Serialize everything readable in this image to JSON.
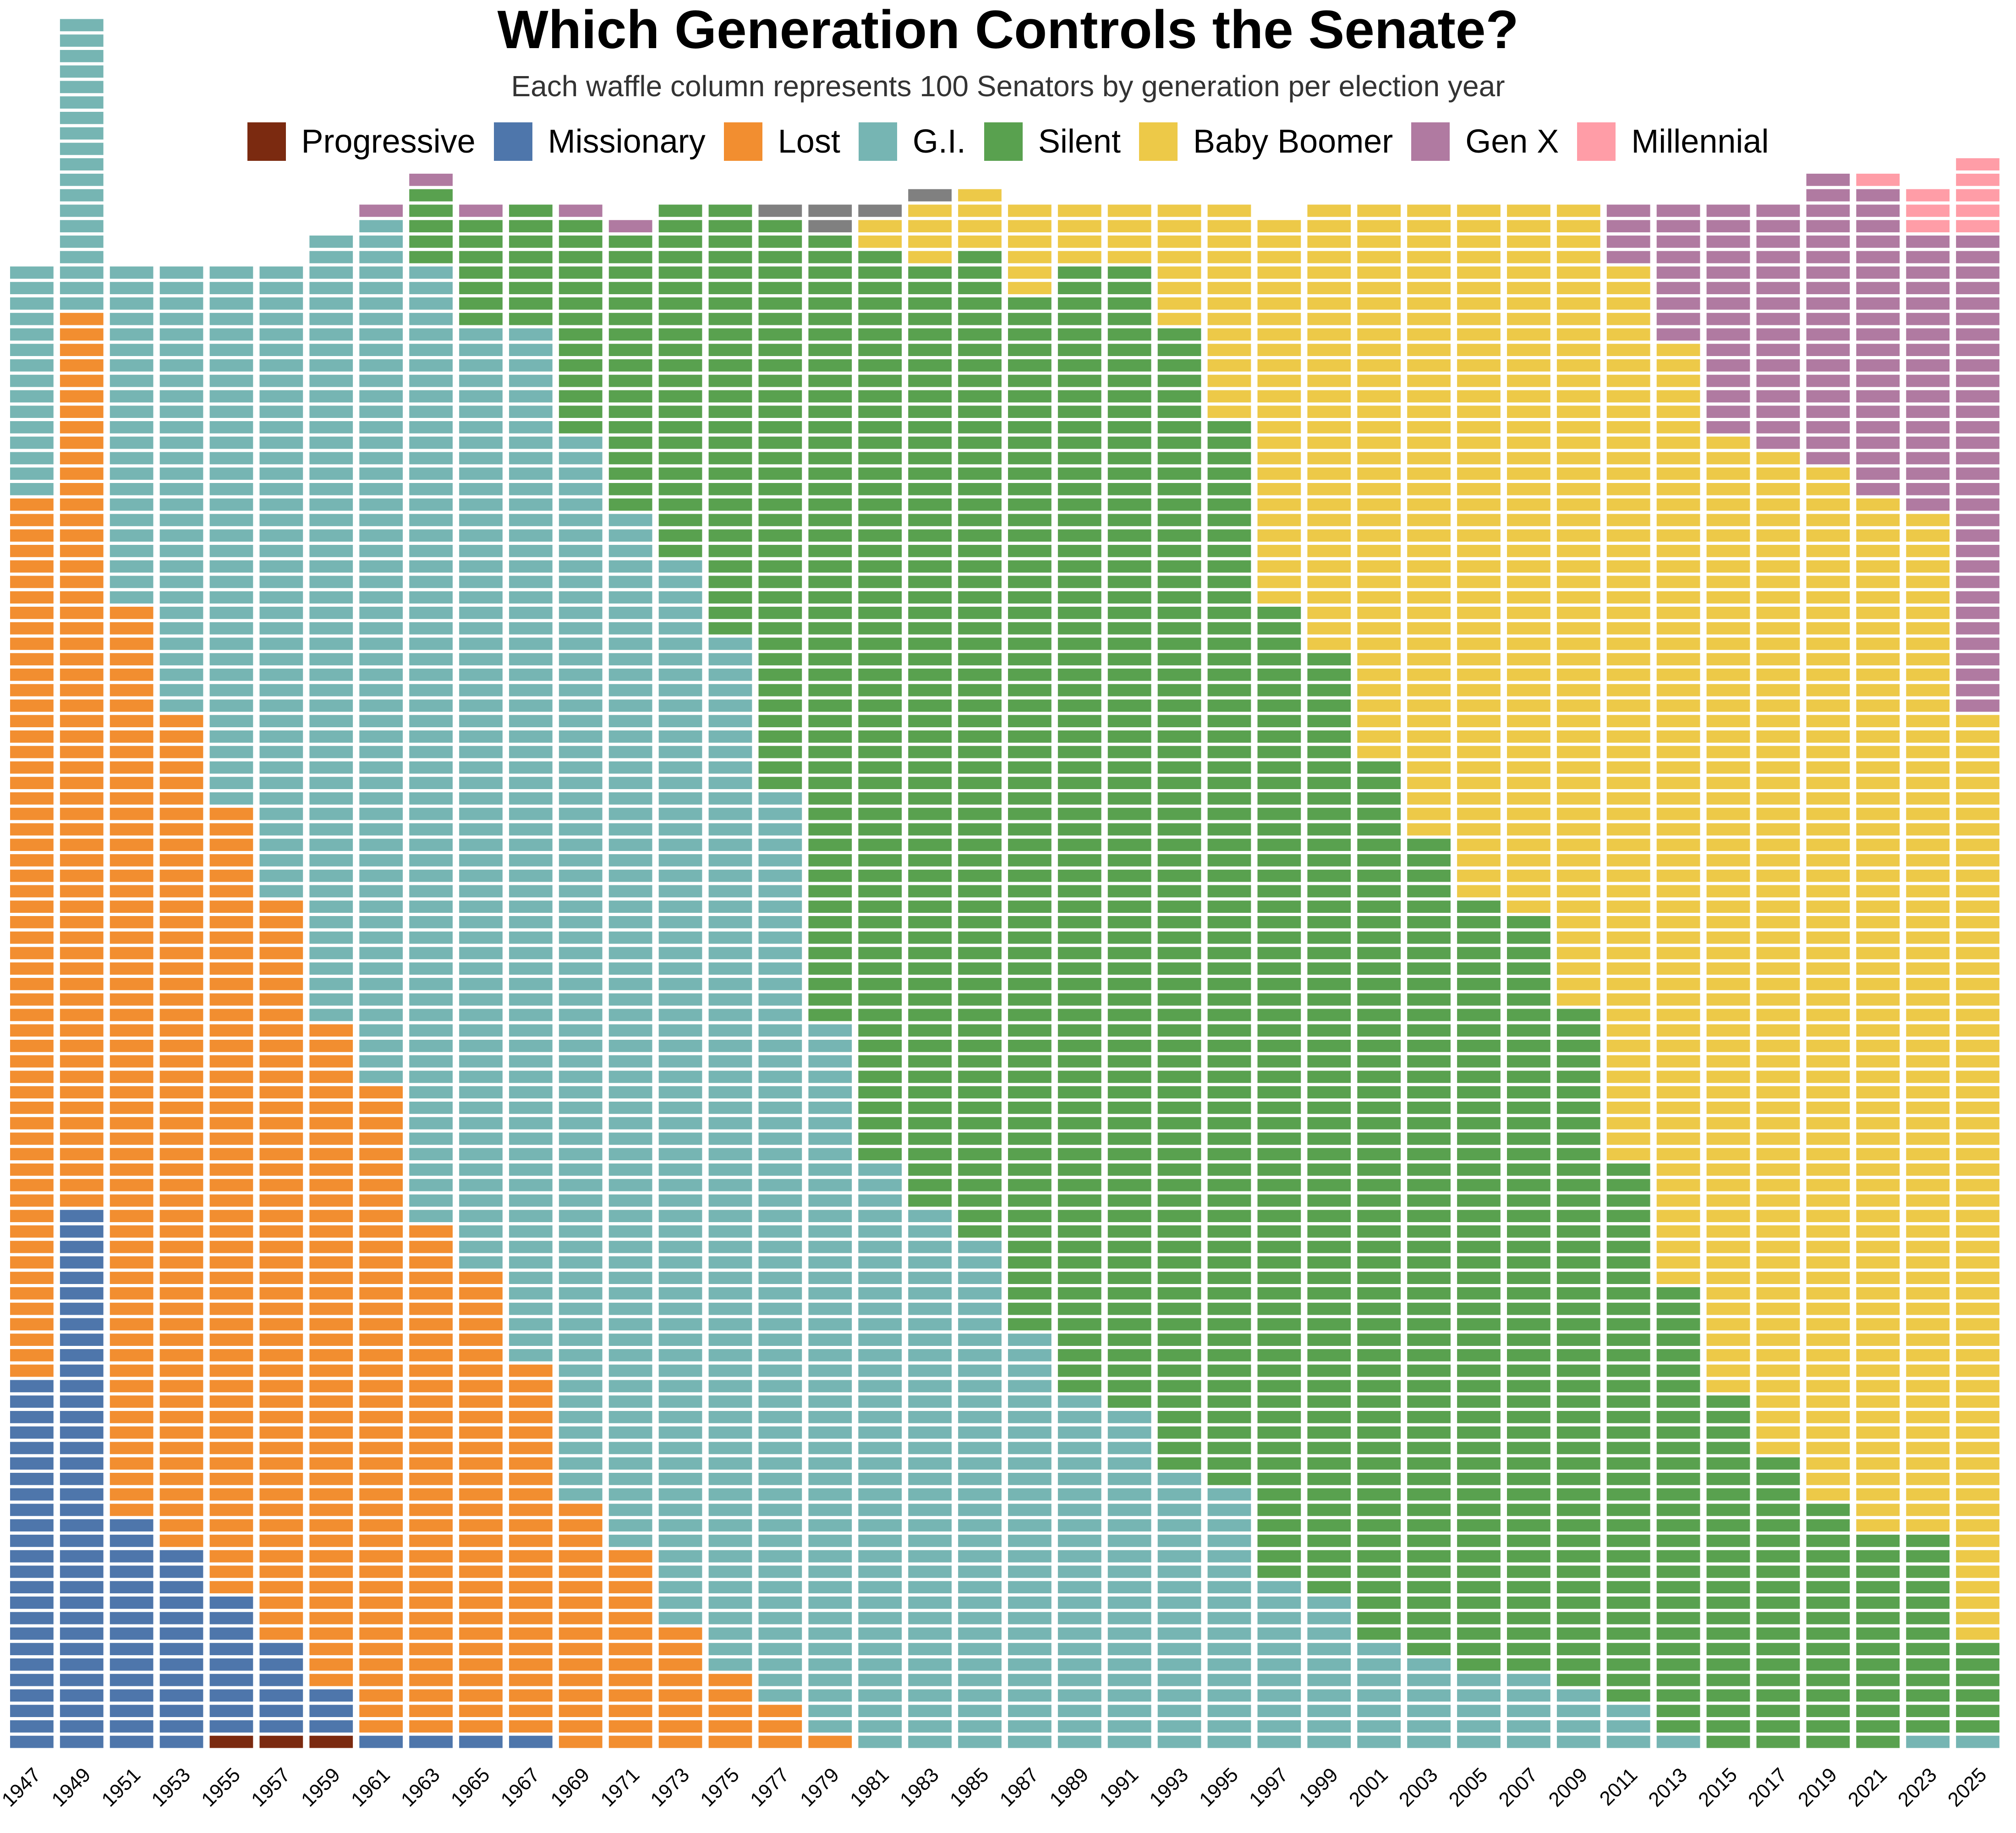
{
  "chart_data": {
    "type": "waffle",
    "title": "Which Generation Controls the Senate?",
    "subtitle": "Each waffle column represents 100 Senators by generation per election year",
    "legend_position": "top",
    "generations": [
      {
        "name": "Progressive",
        "color": "#7B2A10"
      },
      {
        "name": "Missionary",
        "color": "#4E76AB"
      },
      {
        "name": "Lost",
        "color": "#F28E30"
      },
      {
        "name": "G.I.",
        "color": "#76B5B3"
      },
      {
        "name": "Silent",
        "color": "#59A14F"
      },
      {
        "name": "Baby Boomer",
        "color": "#EDC948"
      },
      {
        "name": "Gen X",
        "color": "#B07AA1"
      },
      {
        "name": "Millennial",
        "color": "#FF9DA7"
      }
    ],
    "unknown_color": "#808080",
    "years": [
      "1947",
      "1949",
      "1951",
      "1953",
      "1955",
      "1957",
      "1959",
      "1961",
      "1963",
      "1965",
      "1967",
      "1969",
      "1971",
      "1973",
      "1975",
      "1977",
      "1979",
      "1981",
      "1983",
      "1985",
      "1987",
      "1989",
      "1991",
      "1993",
      "1995",
      "1997",
      "1999",
      "2001",
      "2003",
      "2005",
      "2007",
      "2009",
      "2011",
      "2013",
      "2015",
      "2017",
      "2019",
      "2021",
      "2023",
      "2025"
    ],
    "series": [
      {
        "name": "Progressive",
        "values": [
          0,
          0,
          0,
          0,
          1,
          1,
          1,
          0,
          0,
          0,
          0,
          0,
          0,
          0,
          0,
          0,
          0,
          0,
          0,
          0,
          0,
          0,
          0,
          0,
          0,
          0,
          0,
          0,
          0,
          0,
          0,
          0,
          0,
          0,
          0,
          0,
          0,
          0,
          0,
          0
        ]
      },
      {
        "name": "Missionary",
        "values": [
          24,
          35,
          15,
          13,
          9,
          6,
          3,
          1,
          1,
          1,
          1,
          0,
          0,
          0,
          0,
          0,
          0,
          0,
          0,
          0,
          0,
          0,
          0,
          0,
          0,
          0,
          0,
          0,
          0,
          0,
          0,
          0,
          0,
          0,
          0,
          0,
          0,
          0,
          0,
          0
        ]
      },
      {
        "name": "Lost",
        "values": [
          57,
          58,
          59,
          54,
          51,
          48,
          43,
          42,
          33,
          30,
          24,
          16,
          13,
          8,
          5,
          3,
          1,
          0,
          0,
          0,
          0,
          0,
          0,
          0,
          0,
          0,
          0,
          0,
          0,
          0,
          0,
          0,
          0,
          0,
          0,
          0,
          0,
          0,
          0,
          0
        ]
      },
      {
        "name": "G.I.",
        "values": [
          15,
          19,
          22,
          29,
          35,
          41,
          51,
          56,
          62,
          61,
          67,
          69,
          67,
          69,
          67,
          59,
          46,
          38,
          35,
          33,
          27,
          23,
          22,
          18,
          17,
          11,
          10,
          7,
          6,
          5,
          5,
          4,
          3,
          1,
          0,
          0,
          0,
          0,
          1,
          1
        ]
      },
      {
        "name": "Silent",
        "values": [
          0,
          0,
          0,
          0,
          0,
          0,
          0,
          0,
          5,
          7,
          8,
          14,
          18,
          23,
          28,
          37,
          51,
          59,
          61,
          64,
          67,
          73,
          74,
          74,
          69,
          63,
          61,
          57,
          53,
          50,
          49,
          44,
          35,
          29,
          23,
          19,
          16,
          14,
          13,
          6
        ]
      },
      {
        "name": "Baby Boomer",
        "values": [
          0,
          0,
          0,
          0,
          0,
          0,
          0,
          0,
          0,
          0,
          0,
          0,
          0,
          0,
          0,
          0,
          0,
          2,
          4,
          4,
          6,
          4,
          4,
          8,
          14,
          25,
          29,
          36,
          41,
          45,
          46,
          52,
          58,
          61,
          62,
          65,
          67,
          67,
          66,
          60
        ]
      },
      {
        "name": "Gen X",
        "values": [
          0,
          0,
          0,
          0,
          0,
          0,
          0,
          1,
          1,
          1,
          0,
          1,
          1,
          0,
          0,
          0,
          0,
          0,
          0,
          0,
          0,
          0,
          0,
          0,
          0,
          0,
          0,
          0,
          0,
          0,
          0,
          0,
          4,
          9,
          15,
          16,
          19,
          20,
          18,
          31
        ]
      },
      {
        "name": "Millennial",
        "values": [
          0,
          0,
          0,
          0,
          0,
          0,
          0,
          0,
          0,
          0,
          0,
          0,
          0,
          0,
          0,
          0,
          0,
          0,
          0,
          0,
          0,
          0,
          0,
          0,
          0,
          0,
          0,
          0,
          0,
          0,
          0,
          0,
          0,
          0,
          0,
          0,
          0,
          1,
          3,
          5
        ]
      },
      {
        "name": "",
        "values": [
          0,
          0,
          0,
          0,
          0,
          0,
          0,
          0,
          0,
          0,
          0,
          0,
          0,
          0,
          0,
          1,
          2,
          1,
          1,
          0,
          0,
          0,
          0,
          0,
          0,
          0,
          0,
          0,
          0,
          0,
          0,
          0,
          0,
          0,
          0,
          0,
          0,
          0,
          0,
          0
        ]
      }
    ]
  }
}
